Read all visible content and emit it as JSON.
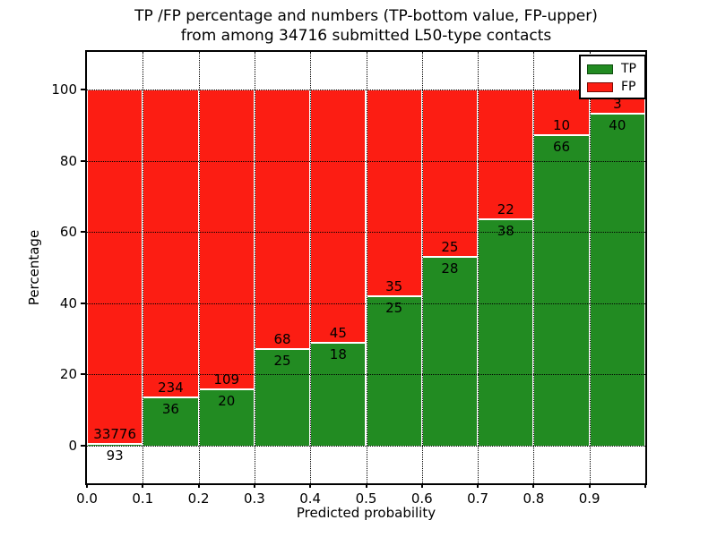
{
  "title": {
    "line1": "TP /FP percentage and numbers (TP-bottom value, FP-upper)",
    "line2": "from among 34716 submitted L50-type contacts"
  },
  "axes": {
    "xlabel": "Predicted probability",
    "ylabel": "Percentage",
    "xtick_labels": [
      "0.0",
      "0.1",
      "0.2",
      "0.3",
      "0.4",
      "0.5",
      "0.6",
      "0.7",
      "0.8",
      "0.9"
    ],
    "ytick_labels": [
      "100",
      "80",
      "60",
      "40",
      "20",
      "0"
    ],
    "ytick_values": [
      100,
      80,
      60,
      40,
      20,
      0
    ]
  },
  "legend": {
    "items": [
      {
        "label": "TP",
        "color": "#228b22",
        "edge": "#0e4d0e"
      },
      {
        "label": "FP",
        "color": "#fc1d13",
        "edge": "#7a0c06"
      }
    ]
  },
  "colors": {
    "tp": "#228b22",
    "fp": "#fc1d13",
    "grid": "#000000",
    "separator": "#ffffff"
  },
  "chart_data": {
    "type": "bar",
    "stacked": true,
    "normalized": "each bar scaled to 100%",
    "title": "TP /FP percentage and numbers (TP-bottom value, FP-upper) from among 34716 submitted L50-type contacts",
    "xlabel": "Predicted probability",
    "ylabel": "Percentage",
    "categories": [
      "0.0-0.1",
      "0.1-0.2",
      "0.2-0.3",
      "0.3-0.4",
      "0.4-0.5",
      "0.5-0.6",
      "0.6-0.7",
      "0.7-0.8",
      "0.8-0.9",
      "0.9-1.0"
    ],
    "series": [
      {
        "name": "TP",
        "values": [
          93,
          36,
          20,
          25,
          18,
          25,
          28,
          38,
          66,
          40
        ]
      },
      {
        "name": "FP",
        "values": [
          33776,
          234,
          109,
          68,
          45,
          35,
          25,
          22,
          10,
          3
        ]
      }
    ],
    "tp_percent": [
      0.27,
      13.33,
      15.5,
      26.88,
      28.57,
      41.67,
      52.83,
      63.33,
      86.84,
      93.02
    ],
    "total_contacts": 34716,
    "ylim": [
      -10.5,
      110.5
    ],
    "xlim": [
      0.0,
      1.0
    ],
    "grid": "dotted, both axes",
    "legend_position": "upper right"
  }
}
